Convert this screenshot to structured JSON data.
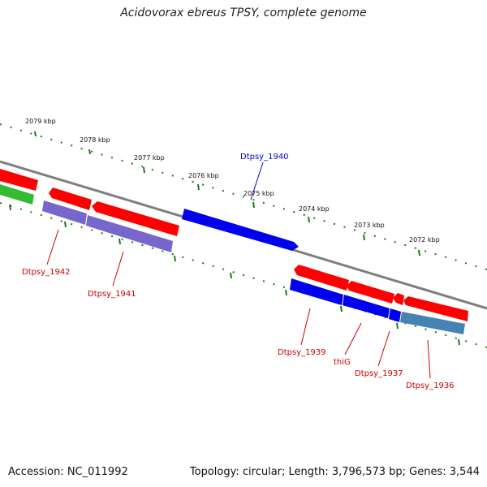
{
  "title": "Acidovorax ebreus TPSY, complete genome",
  "accession_text": "Accession: NC_011992",
  "summary_text": "Topology: circular; Length: 3,796,573 bp; Genes: 3,544",
  "scale_labels": [
    "2079 kbp",
    "2078 kbp",
    "2077 kbp",
    "2076 kbp",
    "2075 kbp",
    "2074 kbp",
    "2073 kbp",
    "2072 kbp"
  ],
  "gene_labels": {
    "dtpsy_1940": "Dtpsy_1940",
    "dtpsy_1942": "Dtpsy_1942",
    "dtpsy_1941": "Dtpsy_1941",
    "dtpsy_1939": "Dtpsy_1939",
    "thig": "thiG",
    "dtpsy_1937": "Dtpsy_1937",
    "dtpsy_1936": "Dtpsy_1936"
  },
  "colors": {
    "backbone": "#7f7f7f",
    "forward_gene": "#ff0000",
    "highlight_gene": "#0000ee",
    "purple_gene": "#7766cc",
    "steel_gene": "#4682b4",
    "green_gene": "#33bb33",
    "tick": "#1a7a1a",
    "label_red": "#cc0000",
    "label_blue": "#0000cc"
  }
}
